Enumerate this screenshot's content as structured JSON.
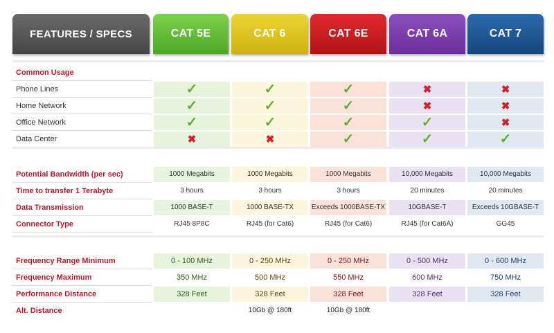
{
  "header": {
    "features": "FEATURES / SPECS",
    "columns": [
      "CAT 5E",
      "CAT 6",
      "CAT 6E",
      "CAT 6A",
      "CAT 7"
    ]
  },
  "symbols": {
    "yes": "✓",
    "no": "✖"
  },
  "usage": {
    "title": "Common Usage",
    "rows": [
      {
        "label": "Phone Lines",
        "values": [
          "yes",
          "yes",
          "yes",
          "no",
          "no"
        ]
      },
      {
        "label": "Home Network",
        "values": [
          "yes",
          "yes",
          "yes",
          "no",
          "no"
        ]
      },
      {
        "label": "Office Network",
        "values": [
          "yes",
          "yes",
          "yes",
          "yes",
          "no"
        ]
      },
      {
        "label": "Data Center",
        "values": [
          "no",
          "no",
          "yes",
          "yes",
          "yes"
        ]
      }
    ]
  },
  "performance": {
    "rows": [
      {
        "label": "Potential Bandwidth (per sec)",
        "values": [
          "1000 Megabits",
          "1000 Megabits",
          "1000 Megabits",
          "10,000 Megabits",
          "10,000 Megabits"
        ]
      },
      {
        "label": "Time to transfer 1 Terabyte",
        "values": [
          "3 hours",
          "3 hours",
          "3 hours",
          "20 minutes",
          "20 minutes"
        ]
      },
      {
        "label": "Data Transmission",
        "values": [
          "1000 BASE-T",
          "1000 BASE-TX",
          "Exceeds 1000BASE-TX",
          "10GBASE-T",
          "Exceeds 10GBASE-T"
        ]
      },
      {
        "label": "Connector Type",
        "values": [
          "RJ45 8P8C",
          "RJ45 (for Cat6)",
          "RJ45 (for Cat6)",
          "RJ45 (for Cat6A)",
          "GG45"
        ]
      }
    ]
  },
  "frequency": {
    "rows": [
      {
        "label": "Frequency Range Minimum",
        "values": [
          "0 - 100 MHz",
          "0 - 250 MHz",
          "0 - 250 MHz",
          "0 - 500 MHz",
          "0 - 600 MHz"
        ]
      },
      {
        "label": "Frequency Maximum",
        "values": [
          "350 MHz",
          "500 MHz",
          "550 MHz",
          "600 MHz",
          "750 MHz"
        ]
      },
      {
        "label": "Performance Distance",
        "values": [
          "328 Feet",
          "328 Feet",
          "328 Feet",
          "328 Feet",
          "328 Feet"
        ]
      },
      {
        "label": "Alt. Distance",
        "values": [
          "",
          "10Gb @ 180ft",
          "10Gb @ 180ft",
          "",
          ""
        ]
      }
    ]
  },
  "colors": {
    "cat5e": "#4ea626",
    "cat6": "#cfb10f",
    "cat6e": "#b31217",
    "cat6a": "#6a2f9a",
    "cat7": "#16467e",
    "label_red": "#c0162b",
    "check": "#5fb030",
    "cross": "#d3202a"
  }
}
